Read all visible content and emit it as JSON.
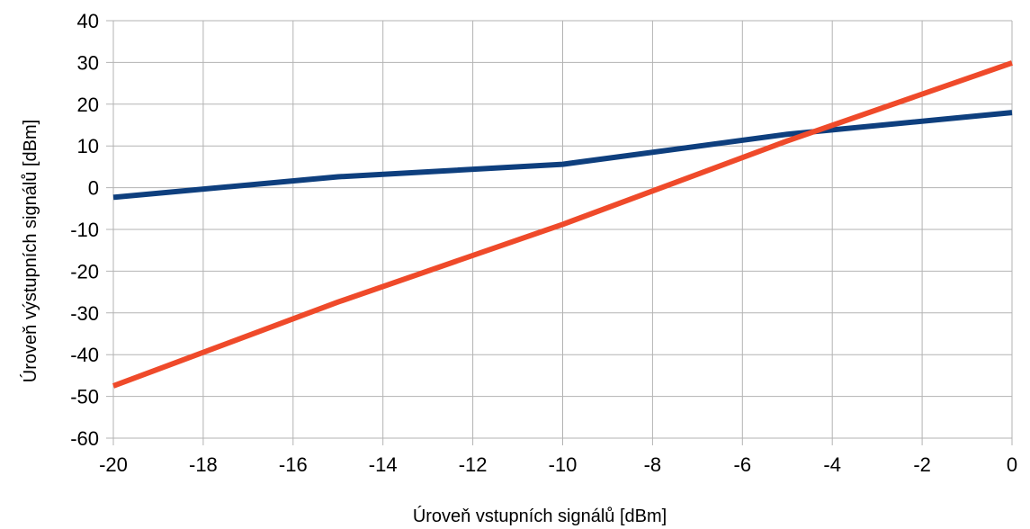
{
  "chart_data": {
    "type": "line",
    "xlabel": "Úroveň vstupních signálů [dBm]",
    "ylabel": "Úroveň výstupních signálů [dBm]",
    "xlim": [
      -20,
      0
    ],
    "ylim": [
      -60,
      40
    ],
    "x_ticks": [
      "-20",
      "-18",
      "-16",
      "-14",
      "-12",
      "-10",
      "-8",
      "-6",
      "-4",
      "-2",
      "0"
    ],
    "y_ticks": [
      "40",
      "30",
      "20",
      "10",
      "0",
      "-10",
      "-20",
      "-30",
      "-40",
      "-50",
      "-60"
    ],
    "grid": true,
    "legend": "none",
    "series": [
      {
        "color": "#0e3f7e",
        "x": [
          -20,
          -15,
          -10,
          -5,
          0
        ],
        "y": [
          -2.3,
          2.6,
          5.6,
          12.8,
          18
        ]
      },
      {
        "color": "#ef4a2a",
        "x": [
          -20,
          -15,
          -10,
          -5,
          0
        ],
        "y": [
          -47.5,
          -27.4,
          -8.8,
          11.2,
          29.9
        ]
      }
    ]
  }
}
